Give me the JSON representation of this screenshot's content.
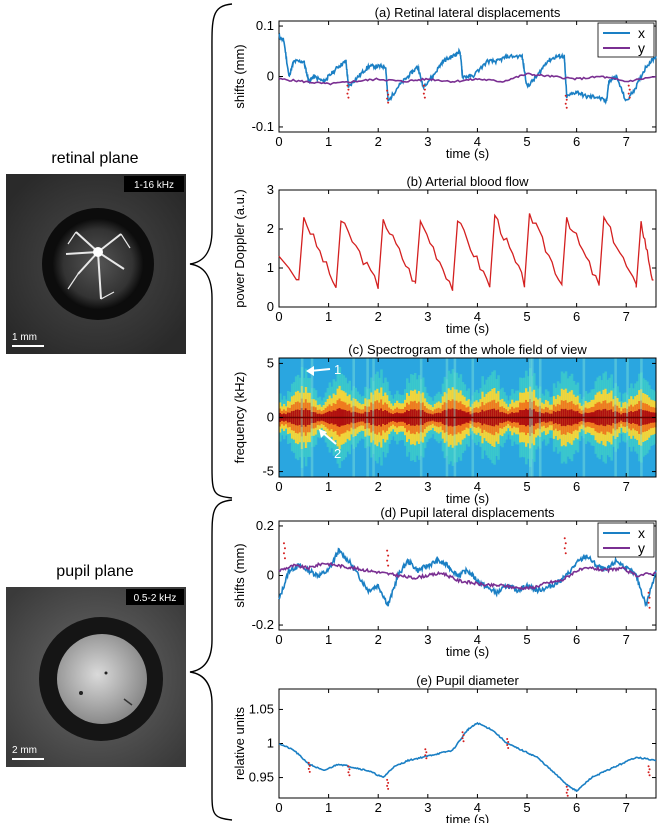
{
  "retinal": {
    "label": "retinal plane",
    "badge": "1-16 kHz",
    "scale": "1 mm"
  },
  "pupil": {
    "label": "pupil plane",
    "badge": "0.5-2 kHz",
    "scale": "2 mm"
  },
  "colors": {
    "x": "#1a7fc4",
    "y": "#7a2f92",
    "flow": "#d42020",
    "outlier": "#d42020"
  },
  "chart_data": [
    {
      "id": "a",
      "type": "line",
      "title": "(a) Retinal lateral displacements",
      "xlabel": "time (s)",
      "ylabel": "shifts (mm)",
      "xlim": [
        0,
        7.6
      ],
      "ylim": [
        -0.11,
        0.11
      ],
      "xticks": [
        "0",
        "1",
        "2",
        "3",
        "4",
        "5",
        "6",
        "7"
      ],
      "yticks": [
        "0.1",
        "0",
        "-0.1"
      ],
      "legend": {
        "position": "top-right",
        "entries": [
          "x",
          "y"
        ]
      },
      "series": [
        {
          "name": "x",
          "x": [
            0,
            0.1,
            0.2,
            0.3,
            0.5,
            0.6,
            0.7,
            0.9,
            1.0,
            1.2,
            1.35,
            1.4,
            1.6,
            1.8,
            2.0,
            2.15,
            2.2,
            2.4,
            2.6,
            2.8,
            2.9,
            3.1,
            3.3,
            3.5,
            3.65,
            3.7,
            3.9,
            4.2,
            4.4,
            4.6,
            4.9,
            5.0,
            5.2,
            5.4,
            5.6,
            5.75,
            5.8,
            6.0,
            6.2,
            6.4,
            6.6,
            6.65,
            6.8,
            7.0,
            7.2,
            7.4,
            7.6
          ],
          "y": [
            0.08,
            0.07,
            0.0,
            0.03,
            0.03,
            -0.01,
            0.0,
            -0.01,
            0.0,
            0.02,
            0.03,
            -0.02,
            0.0,
            0.02,
            0.02,
            0.02,
            -0.05,
            -0.02,
            0.0,
            0.02,
            -0.02,
            0.0,
            0.03,
            0.04,
            0.05,
            0.0,
            0.0,
            0.03,
            0.03,
            0.04,
            0.04,
            -0.02,
            0.0,
            0.03,
            0.04,
            0.04,
            -0.04,
            -0.03,
            -0.04,
            -0.04,
            -0.05,
            -0.01,
            0.0,
            -0.05,
            -0.02,
            0.02,
            0.04
          ]
        },
        {
          "name": "y",
          "x": [
            0,
            0.5,
            1.0,
            1.5,
            2.0,
            2.5,
            3.0,
            3.5,
            4.0,
            4.5,
            5.0,
            5.5,
            6.0,
            6.5,
            7.0,
            7.6
          ],
          "y": [
            -0.005,
            -0.01,
            -0.015,
            -0.01,
            -0.005,
            -0.01,
            -0.005,
            -0.01,
            -0.005,
            -0.01,
            0.005,
            0.0,
            -0.005,
            0.0,
            -0.01,
            0.0
          ]
        }
      ]
    },
    {
      "id": "b",
      "type": "line",
      "title": "(b) Arterial blood flow",
      "xlabel": "time (s)",
      "ylabel": "power Doppler (a.u.)",
      "xlim": [
        0,
        7.6
      ],
      "ylim": [
        0,
        3
      ],
      "xticks": [
        "0",
        "1",
        "2",
        "3",
        "4",
        "5",
        "6",
        "7"
      ],
      "yticks": [
        "3",
        "2",
        "1",
        "0"
      ],
      "beats": [
        0.45,
        1.2,
        2.05,
        2.8,
        3.55,
        4.3,
        5.0,
        5.75,
        6.5,
        7.25
      ],
      "peaks": [
        2.3,
        2.2,
        2.25,
        2.2,
        2.2,
        2.35,
        2.4,
        2.3,
        2.3,
        2.2
      ],
      "troughs": [
        0.7,
        0.5,
        0.55,
        0.6,
        0.5,
        0.55,
        0.6,
        0.6,
        0.55,
        0.5
      ]
    },
    {
      "id": "c",
      "type": "heatmap",
      "title": "(c) Spectrogram of the whole field of view",
      "xlabel": "time (s)",
      "ylabel": "frequency (kHz)",
      "xlim": [
        0,
        7.6
      ],
      "ylim": [
        -5.5,
        5.5
      ],
      "xticks": [
        "0",
        "1",
        "2",
        "3",
        "4",
        "5",
        "6",
        "7"
      ],
      "yticks": [
        "5",
        "0",
        "-5"
      ],
      "annotations": [
        "1",
        "2"
      ]
    },
    {
      "id": "d",
      "type": "line",
      "title": "(d) Pupil lateral displacements",
      "xlabel": "time (s)",
      "ylabel": "shifts (mm)",
      "xlim": [
        0,
        7.6
      ],
      "ylim": [
        -0.22,
        0.22
      ],
      "xticks": [
        "0",
        "1",
        "2",
        "3",
        "4",
        "5",
        "6",
        "7"
      ],
      "yticks": [
        "0.2",
        "0",
        "-0.2"
      ],
      "legend": {
        "position": "top-right",
        "entries": [
          "x",
          "y"
        ]
      },
      "series": [
        {
          "name": "x",
          "x": [
            0,
            0.2,
            0.4,
            0.6,
            0.8,
            1.0,
            1.2,
            1.4,
            1.6,
            1.8,
            2.0,
            2.2,
            2.4,
            2.6,
            2.8,
            3.0,
            3.2,
            3.4,
            3.6,
            3.8,
            4.0,
            4.2,
            4.4,
            4.6,
            4.8,
            5.0,
            5.2,
            5.4,
            5.6,
            5.8,
            6.0,
            6.2,
            6.4,
            6.6,
            6.8,
            7.0,
            7.2,
            7.4,
            7.6
          ],
          "y": [
            -0.1,
            0.02,
            0.04,
            0.02,
            0.0,
            0.02,
            0.1,
            0.06,
            0.0,
            -0.06,
            -0.04,
            -0.12,
            0.0,
            0.06,
            0.02,
            0.04,
            0.06,
            0.04,
            0.0,
            0.02,
            -0.02,
            -0.05,
            -0.07,
            -0.04,
            -0.06,
            -0.04,
            -0.06,
            -0.05,
            -0.03,
            0.0,
            0.05,
            0.08,
            0.04,
            0.02,
            0.06,
            0.03,
            0.0,
            -0.12,
            0.02
          ]
        },
        {
          "name": "y",
          "x": [
            0,
            0.3,
            0.6,
            0.9,
            1.2,
            1.5,
            1.8,
            2.1,
            2.4,
            2.7,
            3.0,
            3.3,
            3.6,
            3.9,
            4.2,
            4.5,
            4.8,
            5.1,
            5.4,
            5.7,
            6.0,
            6.3,
            6.6,
            6.9,
            7.2,
            7.6
          ],
          "y": [
            0.02,
            0.04,
            0.03,
            0.05,
            0.04,
            0.03,
            0.02,
            0.01,
            0.0,
            -0.01,
            0.0,
            0.01,
            -0.02,
            -0.03,
            -0.04,
            -0.04,
            -0.05,
            -0.05,
            -0.03,
            -0.02,
            0.02,
            0.03,
            0.02,
            0.03,
            0.0,
            0.01
          ]
        }
      ]
    },
    {
      "id": "e",
      "type": "line",
      "title": "(e) Pupil diameter",
      "xlabel": "time (s)",
      "ylabel": "relative units",
      "xlim": [
        0,
        7.6
      ],
      "ylim": [
        0.92,
        1.08
      ],
      "xticks": [
        "0",
        "1",
        "2",
        "3",
        "4",
        "5",
        "6",
        "7"
      ],
      "yticks": [
        "1.05",
        "1",
        "0.95"
      ],
      "series": [
        {
          "name": "diameter",
          "x": [
            0,
            0.3,
            0.6,
            0.9,
            1.2,
            1.5,
            1.8,
            2.1,
            2.3,
            2.6,
            2.9,
            3.2,
            3.5,
            3.8,
            4.0,
            4.3,
            4.6,
            4.9,
            5.2,
            5.5,
            5.8,
            6.0,
            6.3,
            6.6,
            6.9,
            7.2,
            7.6
          ],
          "y": [
            1.0,
            0.99,
            0.97,
            0.96,
            0.97,
            0.965,
            0.96,
            0.95,
            0.965,
            0.975,
            0.98,
            0.985,
            0.99,
            1.02,
            1.03,
            1.02,
            1.0,
            0.99,
            0.98,
            0.96,
            0.94,
            0.93,
            0.95,
            0.96,
            0.97,
            0.98,
            0.975
          ]
        }
      ]
    }
  ]
}
